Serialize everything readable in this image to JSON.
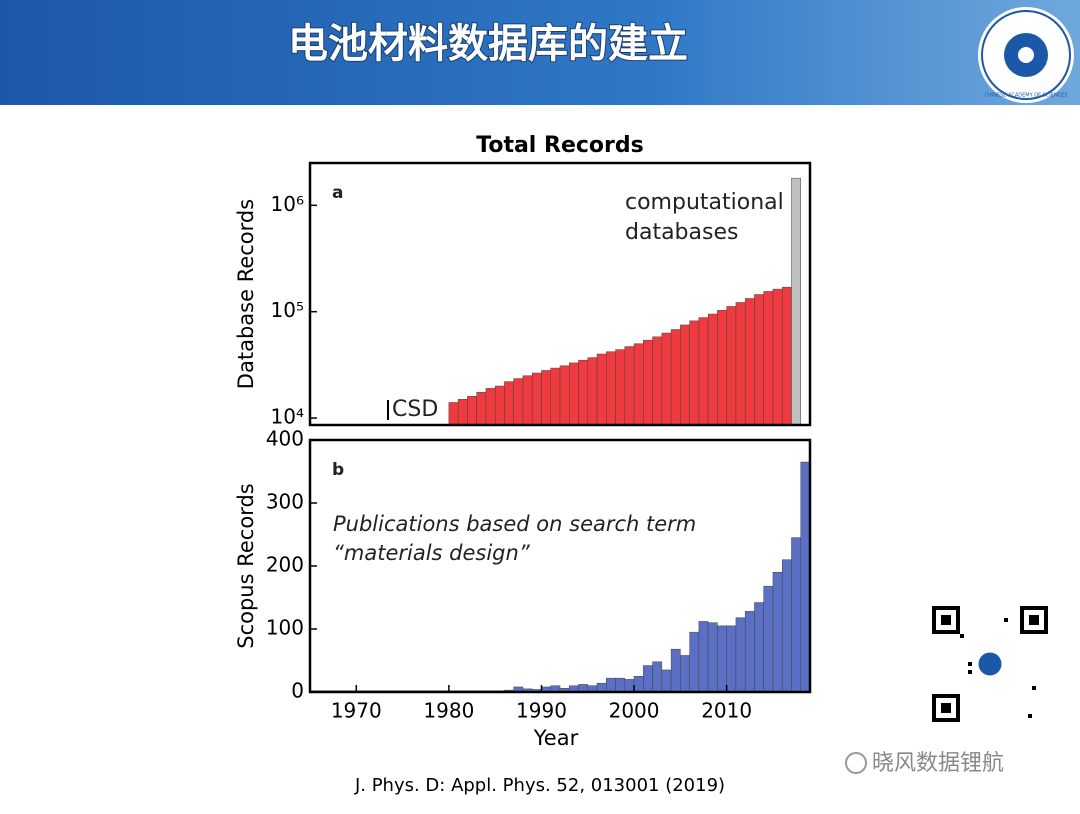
{
  "header": {
    "title": "电池材料数据库的建立",
    "logo_text": "CHINESE ACADEMY OF SCIENCES"
  },
  "chart_data": [
    {
      "type": "bar",
      "title": "Total Records",
      "y_label": "Database Records",
      "log_scale": true,
      "xlim": [
        1965,
        2019
      ],
      "ylim": [
        8600,
        2500000
      ],
      "yticks": [
        {
          "value": 10000,
          "label": "10⁴"
        },
        {
          "value": 100000,
          "label": "10⁵"
        },
        {
          "value": 1000000,
          "label": "10⁶"
        }
      ],
      "annotations": [
        "a",
        "computational",
        "databases",
        "CSD"
      ],
      "series": [
        {
          "color": "#ef3b3f",
          "x": [
            1980,
            1981,
            1982,
            1983,
            1984,
            1985,
            1986,
            1987,
            1988,
            1989,
            1990,
            1991,
            1992,
            1993,
            1994,
            1995,
            1996,
            1997,
            1998,
            1999,
            2000,
            2001,
            2002,
            2003,
            2004,
            2005,
            2006,
            2007,
            2008,
            2009,
            2010,
            2011,
            2012,
            2013,
            2014,
            2015,
            2016
          ],
          "values": [
            14000,
            15000,
            16000,
            17500,
            19000,
            20000,
            22000,
            23500,
            25000,
            26500,
            28000,
            29500,
            31000,
            33000,
            35000,
            37000,
            40000,
            42000,
            44000,
            47000,
            50000,
            54000,
            58000,
            63000,
            68000,
            75000,
            82000,
            88000,
            95000,
            103000,
            112000,
            122000,
            133000,
            145000,
            155000,
            163000,
            170000
          ]
        },
        {
          "color": "#c0c0c0",
          "x": [
            2017
          ],
          "values": [
            1800000
          ]
        }
      ]
    },
    {
      "type": "bar",
      "y_label": "Scopus Records",
      "x_label": "Year",
      "xlim": [
        1965,
        2019
      ],
      "ylim": [
        0,
        400
      ],
      "yticks": [
        0,
        100,
        200,
        300,
        400
      ],
      "xticks": [
        1970,
        1980,
        1990,
        2000,
        2010
      ],
      "annotations": [
        "b",
        "Publications based on search term",
        "“materials design”"
      ],
      "series": [
        {
          "color": "#5b6fc4",
          "x": [
            1965,
            1966,
            1967,
            1968,
            1969,
            1970,
            1971,
            1972,
            1973,
            1974,
            1975,
            1976,
            1977,
            1978,
            1979,
            1980,
            1981,
            1982,
            1983,
            1984,
            1985,
            1986,
            1987,
            1988,
            1989,
            1990,
            1991,
            1992,
            1993,
            1994,
            1995,
            1996,
            1997,
            1998,
            1999,
            2000,
            2001,
            2002,
            2003,
            2004,
            2005,
            2006,
            2007,
            2008,
            2009,
            2010,
            2011,
            2012,
            2013,
            2014,
            2015,
            2016,
            2017,
            2018
          ],
          "values": [
            2,
            2,
            2,
            2,
            2,
            2,
            2,
            2,
            2,
            2,
            2,
            2,
            2,
            2,
            2,
            2,
            2,
            2,
            2,
            2,
            2,
            3,
            8,
            5,
            4,
            8,
            10,
            6,
            10,
            12,
            10,
            14,
            22,
            22,
            20,
            25,
            42,
            48,
            35,
            68,
            58,
            95,
            112,
            110,
            105,
            105,
            118,
            128,
            142,
            168,
            190,
            210,
            245,
            365
          ]
        }
      ]
    }
  ],
  "citation": "J. Phys. D: Appl. Phys. 52, 013001 (2019)",
  "watermark": "晓风数据锂航"
}
